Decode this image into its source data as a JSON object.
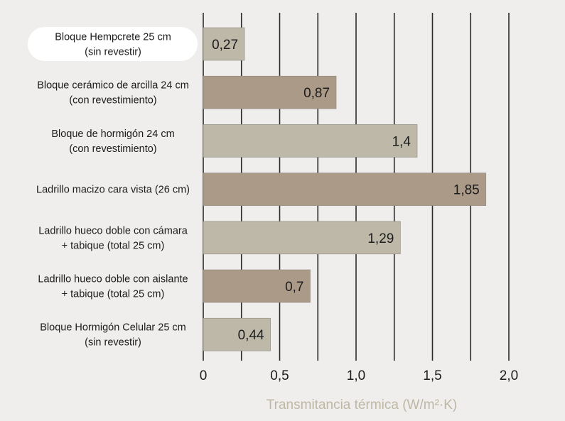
{
  "chart_data": {
    "type": "bar",
    "orientation": "horizontal",
    "categories": [
      [
        "Bloque Hempcrete 25 cm",
        "(sin revestir)"
      ],
      [
        "Bloque cerámico de arcilla 24 cm",
        "(con revestimiento)"
      ],
      [
        "Bloque de hormigón 24 cm",
        "(con revestimiento)"
      ],
      [
        "Ladrillo macizo cara vista (26 cm)"
      ],
      [
        "Ladrillo hueco doble con cámara",
        "+ tabique (total 25 cm)"
      ],
      [
        "Ladrillo hueco doble con aislante",
        "+ tabique (total 25 cm)"
      ],
      [
        "Bloque Hormigón Celular 25 cm",
        "(sin revestir)"
      ]
    ],
    "values": [
      0.27,
      0.87,
      1.4,
      1.85,
      1.29,
      0.7,
      0.44
    ],
    "value_labels": [
      "0,27",
      "0,87",
      "1,4",
      "1,85",
      "1,29",
      "0,7",
      "0,44"
    ],
    "bar_colors": [
      "#bdb8a8",
      "#ab9a88",
      "#bdb8a8",
      "#ab9a88",
      "#bdb8a8",
      "#ab9a88",
      "#bdb8a8"
    ],
    "highlighted_category_index": 0,
    "xlim": [
      0,
      2.0
    ],
    "xticks": [
      0,
      0.5,
      1.0,
      1.5,
      2.0
    ],
    "xtick_labels": [
      "0",
      "0,5",
      "1,0",
      "1,5",
      "2,0"
    ],
    "xlabel": "Transmitancia térmica (W/m²·K)",
    "grid": "vertical",
    "legend": "none",
    "colors": {
      "background": "#efeeec",
      "gridline": "#2a2a2a",
      "highlight_pill": "#ffffff",
      "axis_title": "#bdb7a5",
      "text": "#1c1c1c"
    }
  }
}
